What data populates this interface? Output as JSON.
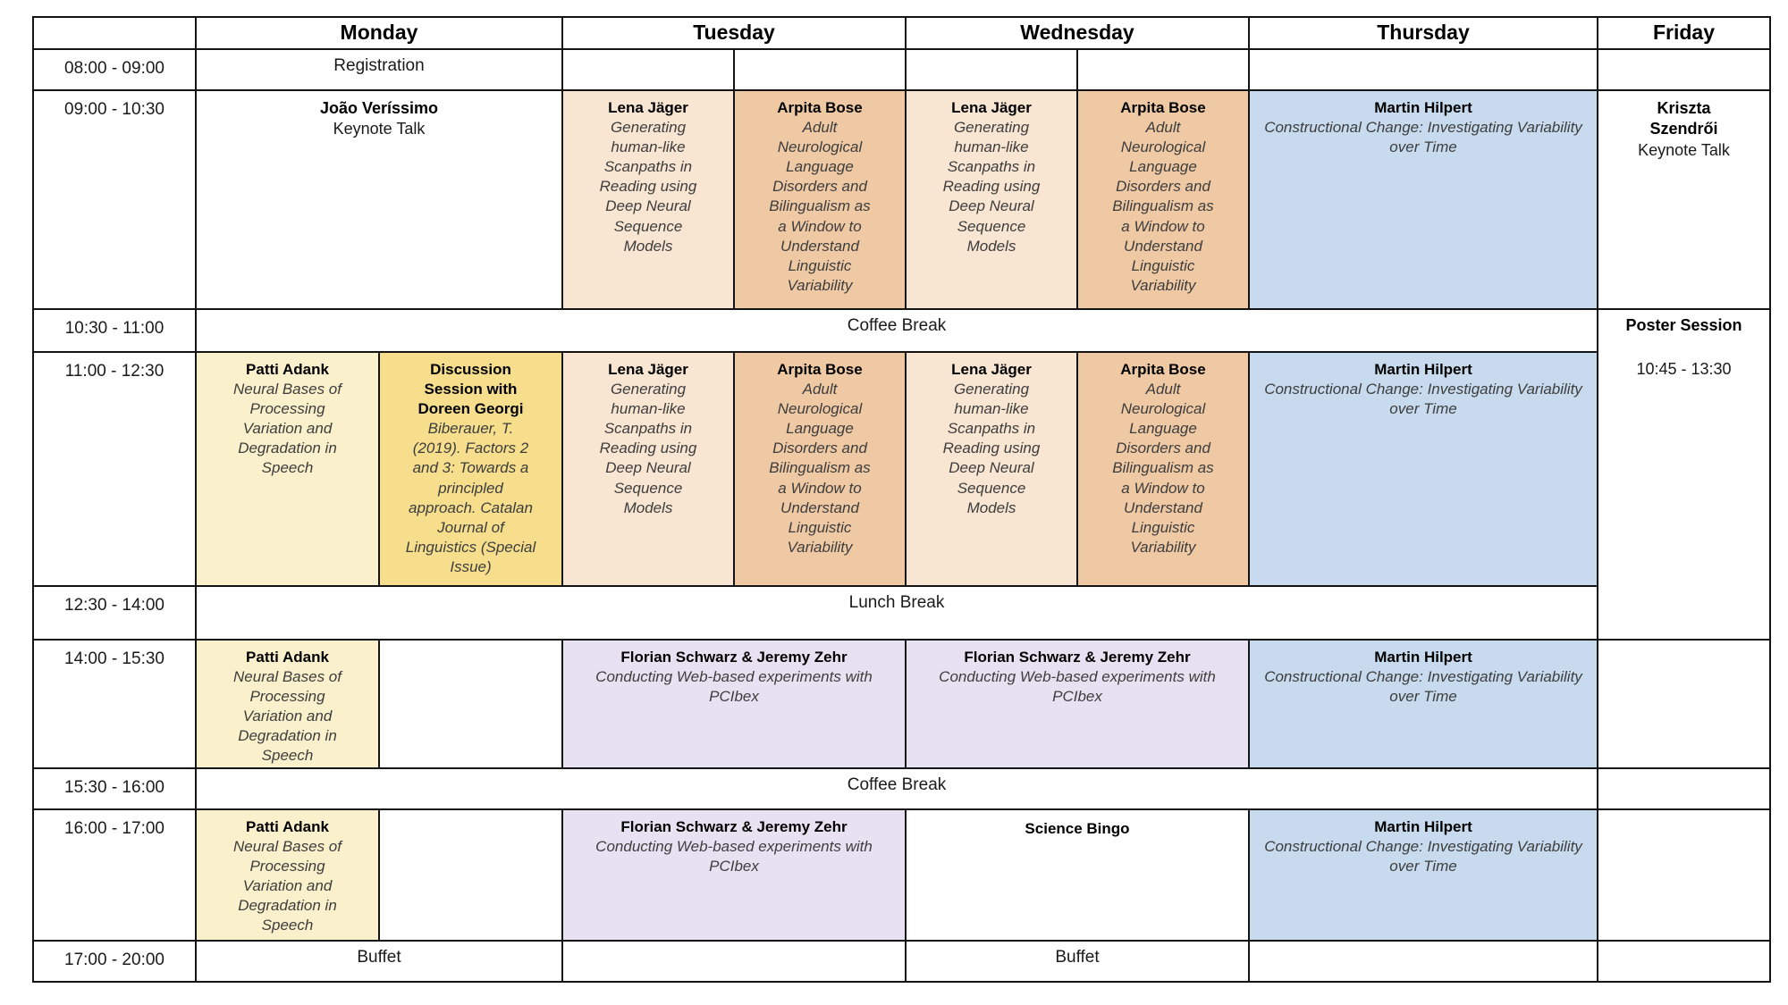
{
  "table": {
    "days": [
      "Monday",
      "Tuesday",
      "Wednesday",
      "Thursday",
      "Friday"
    ],
    "time_slots": [
      "08:00 - 09:00",
      "09:00 - 10:30",
      "10:30 - 11:00",
      "11:00 - 12:30",
      "12:30 - 14:00",
      "14:00 - 15:30",
      "15:30 - 16:00",
      "16:00 - 17:00",
      "17:00 - 20:00"
    ],
    "border_color": "#141414"
  },
  "events": {
    "registration": {
      "label": "Registration"
    },
    "keynote_monday": {
      "speaker": "João Veríssimo",
      "type": "Keynote Talk"
    },
    "keynote_friday": {
      "speaker": "Kriszta Szendrői",
      "type": "Keynote Talk"
    },
    "lena_jaeger": {
      "speaker": "Lena Jäger",
      "title": "Generating human-like Scanpaths in Reading using Deep Neural Sequence Models",
      "color": "#f8e5d2"
    },
    "arpita_bose": {
      "speaker": "Arpita Bose",
      "title": "Adult Neurological Language Disorders and Bilingualism as a Window to Understand Linguistic Variability",
      "color": "#efc9a4"
    },
    "martin_hilpert": {
      "speaker": "Martin Hilpert",
      "title": "Constructional Change: Investigating Variability over Time",
      "color": "#c7daee"
    },
    "patti_adank": {
      "speaker": "Patti Adank",
      "title": "Neural Bases of Processing Variation and Degradation in Speech",
      "color": "#faf0cb"
    },
    "discussion_session": {
      "speaker": "Discussion Session with Doreen Georgi",
      "title": "Biberauer, T. (2019). Factors 2 and 3: Towards a principled approach. Catalan Journal of Linguistics (Special Issue)",
      "color": "#f6de8d"
    },
    "pcibex_workshop": {
      "speaker": "Florian Schwarz & Jeremy Zehr",
      "title": "Conducting Web-based experiments with PCIbex",
      "color": "#e8e1f1"
    },
    "science_bingo": {
      "label": "Science Bingo"
    },
    "coffee_break": {
      "label": "Coffee Break"
    },
    "lunch_break": {
      "label": "Lunch Break"
    },
    "buffet": {
      "label": "Buffet"
    },
    "poster_session": {
      "label": "Poster Session",
      "time": "10:45 - 13:30"
    }
  }
}
